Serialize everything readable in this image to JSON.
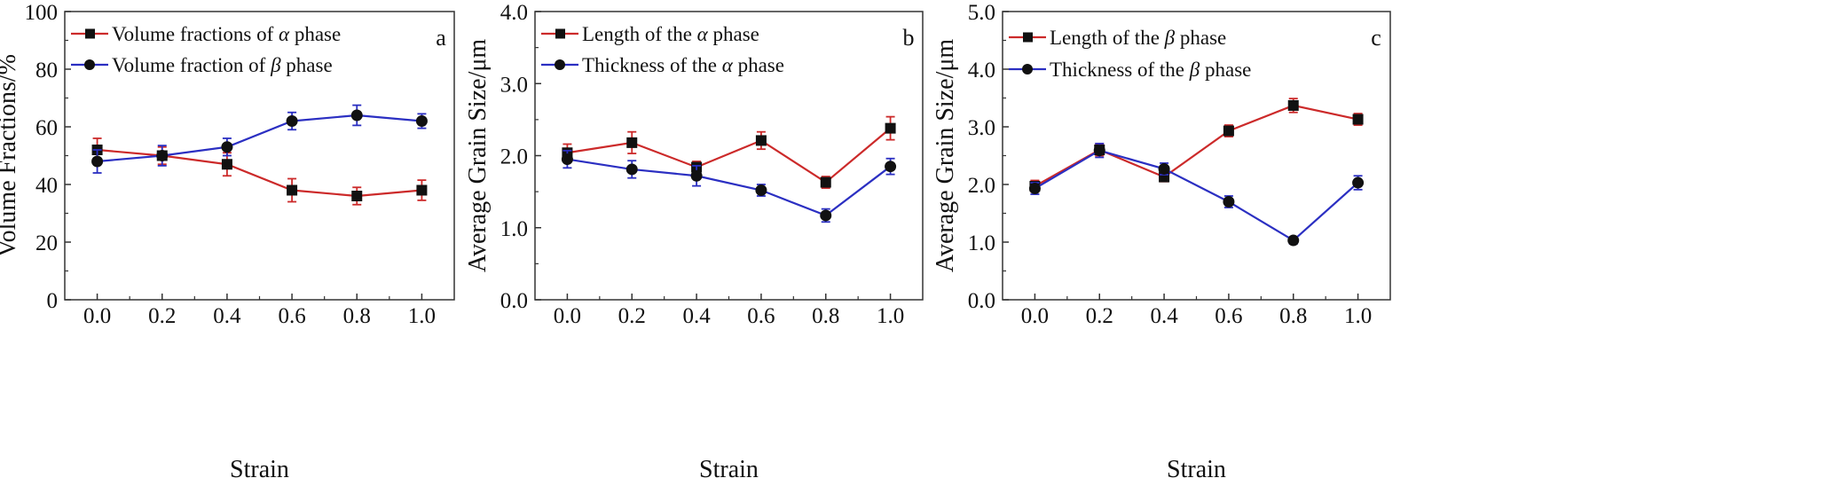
{
  "figure": {
    "colors": {
      "red_series": "#cc2a2a",
      "blue_series": "#2b2fc2",
      "marker": "#111111",
      "axis": "#333333"
    }
  },
  "chart_data": [
    {
      "type": "line",
      "panel_letter": "a",
      "xlabel": "Strain",
      "ylabel": "Volume Fractions/%",
      "x": [
        0.0,
        0.2,
        0.4,
        0.6,
        0.8,
        1.0
      ],
      "x_tick_labels": [
        "0.0",
        "0.2",
        "0.4",
        "0.6",
        "0.8",
        "1.0"
      ],
      "xlim": [
        -0.1,
        1.1
      ],
      "ylim": [
        0,
        100
      ],
      "y_ticks": [
        0,
        20,
        40,
        60,
        80,
        100
      ],
      "y_tick_labels": [
        "0",
        "20",
        "40",
        "60",
        "80",
        "100"
      ],
      "grid": false,
      "legend_position": "top-left",
      "series": [
        {
          "name": "Volume fractions of α phase",
          "name_prefix": "Volume fractions of ",
          "name_symbol": "α",
          "name_suffix": " phase",
          "color": "#cc2a2a",
          "marker": "square",
          "values": [
            52,
            50,
            47,
            38,
            36,
            38
          ],
          "errors": [
            4,
            3,
            4,
            4,
            3,
            3.5
          ]
        },
        {
          "name": "Volume fraction of β phase",
          "name_prefix": "Volume fraction of ",
          "name_symbol": "β",
          "name_suffix": " phase",
          "color": "#2b2fc2",
          "marker": "circle",
          "values": [
            48,
            50,
            53,
            62,
            64,
            62
          ],
          "errors": [
            4,
            3.5,
            3,
            3,
            3.5,
            2.5
          ]
        }
      ]
    },
    {
      "type": "line",
      "panel_letter": "b",
      "xlabel": "Strain",
      "ylabel": "Average Grain Size/μm",
      "x": [
        0.0,
        0.2,
        0.4,
        0.6,
        0.8,
        1.0
      ],
      "x_tick_labels": [
        "0.0",
        "0.2",
        "0.4",
        "0.6",
        "0.8",
        "1.0"
      ],
      "xlim": [
        -0.1,
        1.1
      ],
      "ylim": [
        0,
        4
      ],
      "y_ticks": [
        0,
        1,
        2,
        3,
        4
      ],
      "y_tick_labels": [
        "0.0",
        "1.0",
        "2.0",
        "3.0",
        "4.0"
      ],
      "grid": false,
      "legend_position": "top-left",
      "series": [
        {
          "name": "Length of the α phase",
          "name_prefix": "Length of the ",
          "name_symbol": "α",
          "name_suffix": " phase",
          "color": "#cc2a2a",
          "marker": "square",
          "values": [
            2.04,
            2.18,
            1.84,
            2.21,
            1.63,
            2.38
          ],
          "errors": [
            0.12,
            0.15,
            0.08,
            0.12,
            0.08,
            0.16
          ]
        },
        {
          "name": "Thickness of the α phase",
          "name_prefix": "Thickness of the ",
          "name_symbol": "α",
          "name_suffix": " phase",
          "color": "#2b2fc2",
          "marker": "circle",
          "values": [
            1.95,
            1.81,
            1.72,
            1.52,
            1.17,
            1.85
          ],
          "errors": [
            0.12,
            0.12,
            0.14,
            0.08,
            0.09,
            0.11
          ]
        }
      ]
    },
    {
      "type": "line",
      "panel_letter": "c",
      "xlabel": "Strain",
      "ylabel": "Average Grain Size/μm",
      "x": [
        0.0,
        0.2,
        0.4,
        0.6,
        0.8,
        1.0
      ],
      "x_tick_labels": [
        "0.0",
        "0.2",
        "0.4",
        "0.6",
        "0.8",
        "1.0"
      ],
      "xlim": [
        -0.1,
        1.1
      ],
      "ylim": [
        0,
        5
      ],
      "y_ticks": [
        0,
        1,
        2,
        3,
        4,
        5
      ],
      "y_tick_labels": [
        "0.0",
        "1.0",
        "2.0",
        "3.0",
        "4.0",
        "5.0"
      ],
      "grid": false,
      "legend_position": "top-left",
      "series": [
        {
          "name": "Length of the β phase",
          "name_prefix": "Length of the ",
          "name_symbol": "β",
          "name_suffix": " phase",
          "color": "#cc2a2a",
          "marker": "square",
          "values": [
            1.97,
            2.6,
            2.13,
            2.93,
            3.37,
            3.13
          ],
          "errors": [
            0.1,
            0.1,
            0.08,
            0.1,
            0.12,
            0.1
          ]
        },
        {
          "name": "Thickness of the β phase",
          "name_prefix": "Thickness of the ",
          "name_symbol": "β",
          "name_suffix": " phase",
          "color": "#2b2fc2",
          "marker": "circle",
          "values": [
            1.93,
            2.59,
            2.27,
            1.7,
            1.03,
            2.03
          ],
          "errors": [
            0.1,
            0.12,
            0.1,
            0.1,
            0.06,
            0.12
          ]
        }
      ]
    }
  ]
}
